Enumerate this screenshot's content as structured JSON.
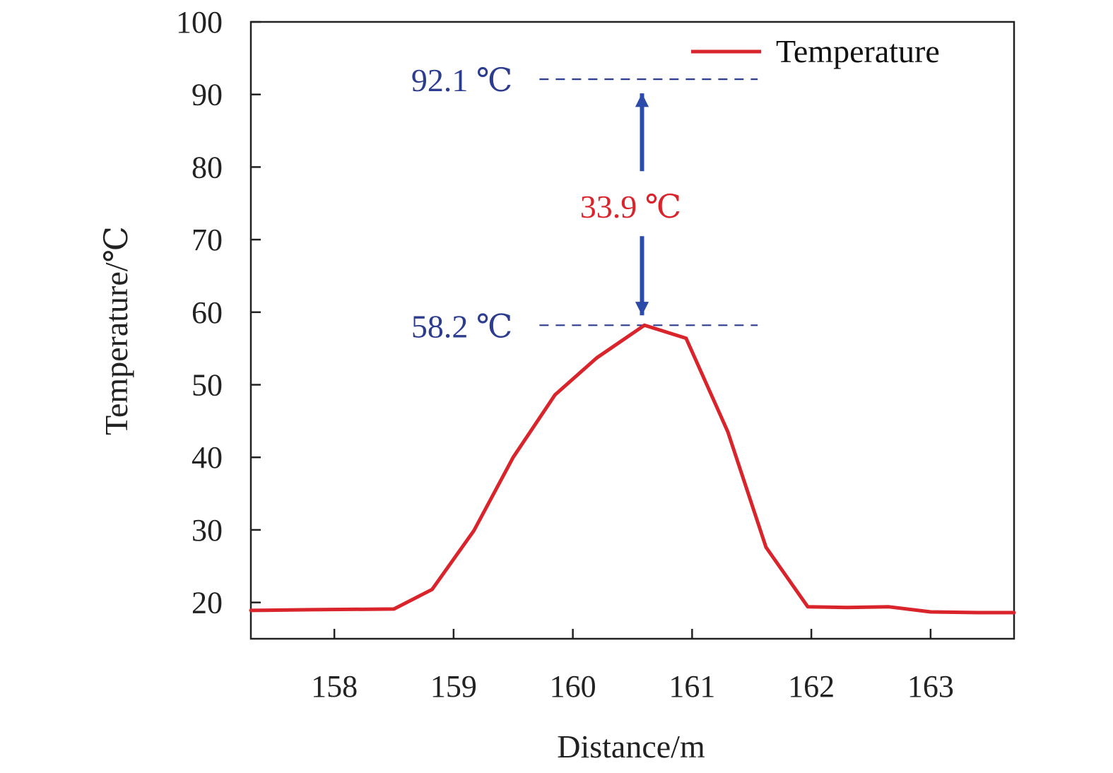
{
  "chart_data": {
    "type": "line",
    "title": "",
    "xlabel": "Distance/m",
    "ylabel": "Temperature/℃",
    "xlim": [
      157.3,
      163.7
    ],
    "ylim": [
      15,
      100
    ],
    "xticks": [
      158,
      159,
      160,
      161,
      162,
      163
    ],
    "yticks": [
      20,
      30,
      40,
      50,
      60,
      70,
      80,
      90,
      100
    ],
    "grid": false,
    "legend_position": "top-right",
    "series": [
      {
        "name": "Temperature",
        "color": "#d9242b",
        "x": [
          157.3,
          157.8,
          158.5,
          158.82,
          159.17,
          159.5,
          159.85,
          160.2,
          160.6,
          160.95,
          161.3,
          161.62,
          161.97,
          162.3,
          162.65,
          163.0,
          163.4,
          163.7
        ],
        "y": [
          18.9,
          19.0,
          19.1,
          21.8,
          29.9,
          40.0,
          48.6,
          53.7,
          58.2,
          56.4,
          43.5,
          27.6,
          19.4,
          19.3,
          19.4,
          18.7,
          18.6,
          18.6
        ]
      }
    ],
    "annotations": {
      "upper_level": {
        "value": 92.1,
        "label": "92.1 ℃",
        "color": "#2c3d8f"
      },
      "lower_level": {
        "value": 58.2,
        "label": "58.2 ℃",
        "color": "#2c3d8f"
      },
      "difference": {
        "label": "33.9 ℃",
        "color": "#d9242b",
        "arrow_color": "#2c4aa8",
        "x": 160.58
      }
    }
  }
}
